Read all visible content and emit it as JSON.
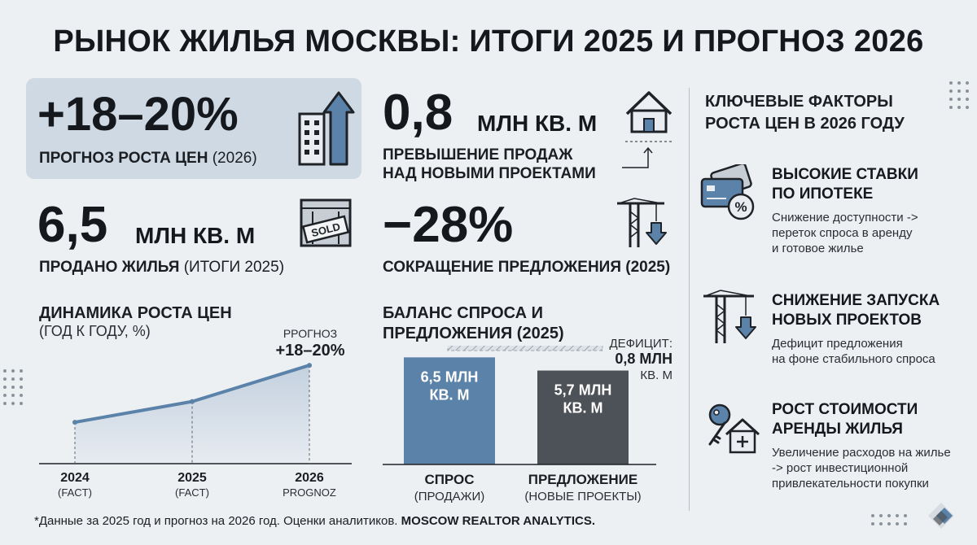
{
  "title": "РЫНОК ЖИЛЬЯ МОСКВЫ: ИТОГИ 2025 И ПРОГНОЗ 2026",
  "stats": {
    "forecast": {
      "value": "+18–20%",
      "label": "ПРОГНОЗ РОСТА ЦЕН",
      "label_note": "(2026)"
    },
    "excess": {
      "value": "0,8",
      "unit": "МЛН КВ. М",
      "label_line1": "ПРЕВЫШЕНИЕ ПРОДАЖ",
      "label_line2": "НАД НОВЫМИ ПРОЕКТАМИ"
    },
    "sold": {
      "value": "6,5",
      "unit": "МЛН КВ. М",
      "label": "ПРОДАНО ЖИЛЬЯ",
      "label_note": "(ИТОГИ 2025)",
      "sign_text": "SOLD"
    },
    "supply_cut": {
      "value": "−28%",
      "label": "СОКРАЩЕНИЕ ПРЕДЛОЖЕНИЯ (2025)"
    }
  },
  "line_chart": {
    "title": "ДИНАМИКА РОСТА ЦЕН",
    "subtitle": "(ГОД К ГОДУ, %)",
    "annotation_label": "PРОГНОЗ",
    "annotation_value": "+18–20%",
    "ticks": [
      {
        "year": "2024",
        "note": "(FACT)"
      },
      {
        "year": "2025",
        "note": "(FACT)"
      },
      {
        "year": "2026",
        "note": "PROGNOZ"
      }
    ]
  },
  "bar_chart": {
    "title_line1": "БАЛАНС СПРОСА И",
    "title_line2": "ПРЕДЛОЖЕНИЯ (2025)",
    "deficit_label": "ДЕФИЦИТ:",
    "deficit_value": "0,8 МЛН",
    "deficit_unit": "КВ. М",
    "bars": [
      {
        "value_line1": "6,5 МЛН",
        "value_line2": "КВ. М",
        "cat_line1": "СПРОС",
        "cat_line2": "(ПРОДАЖИ)"
      },
      {
        "value_line1": "5,7 МЛН",
        "value_line2": "КВ. М",
        "cat_line1": "ПРЕДЛОЖЕНИЕ",
        "cat_line2": "(НОВЫЕ ПРОЕКТЫ)"
      }
    ]
  },
  "factors": {
    "title_line1": "КЛЮЧЕВЫЕ ФАКТОРЫ",
    "title_line2": "РОСТА ЦЕН В 2026 ГОДУ",
    "items": [
      {
        "title_line1": "ВЫСОКИЕ СТАВКИ",
        "title_line2": "ПО ИПОТЕКЕ",
        "desc_line1": "Снижение доступности ->",
        "desc_line2": "переток спроса в аренду",
        "desc_line3": "и готовое жилье"
      },
      {
        "title_line1": "СНИЖЕНИЕ ЗАПУСКА",
        "title_line2": "НОВЫХ ПРОЕКТОВ",
        "desc_line1": "Дефицит предложения",
        "desc_line2": "на фоне стабильного спроса",
        "desc_line3": ""
      },
      {
        "title_line1": "РОСТ СТОИМОСТИ",
        "title_line2": "АРЕНДЫ ЖИЛЬЯ",
        "desc_line1": "Увеличение расходов на жилье",
        "desc_line2": "-> рост инвестиционной",
        "desc_line3": "привлекательности покупки"
      }
    ]
  },
  "footer": {
    "text": "*Данные за 2025 год и прогноз на 2026 год. Оценки аналитиков.",
    "brand": "MOSCOW REALTOR ANALYTICS."
  },
  "chart_data": [
    {
      "type": "line",
      "title": "ДИНАМИКА РОСТА ЦЕН",
      "ylabel": "(ГОД К ГОДУ, %)",
      "x": [
        "2024",
        "2025",
        "2026"
      ],
      "values": [
        8,
        12,
        19
      ],
      "ylim": [
        0,
        22
      ],
      "annotation": "+18–20%"
    },
    {
      "type": "bar",
      "title": "БАЛАНС СПРОСА И ПРЕДЛОЖЕНИЯ (2025)",
      "categories": [
        "СПРОС (ПРОДАЖИ)",
        "ПРЕДЛОЖЕНИЕ (НОВЫЕ ПРОЕКТЫ)"
      ],
      "values": [
        6.5,
        5.7
      ],
      "ylabel": "млн кв. м",
      "ylim": [
        0,
        8
      ],
      "deficit": 0.8,
      "colors": [
        "#5b82a8",
        "#4d5258"
      ]
    }
  ]
}
